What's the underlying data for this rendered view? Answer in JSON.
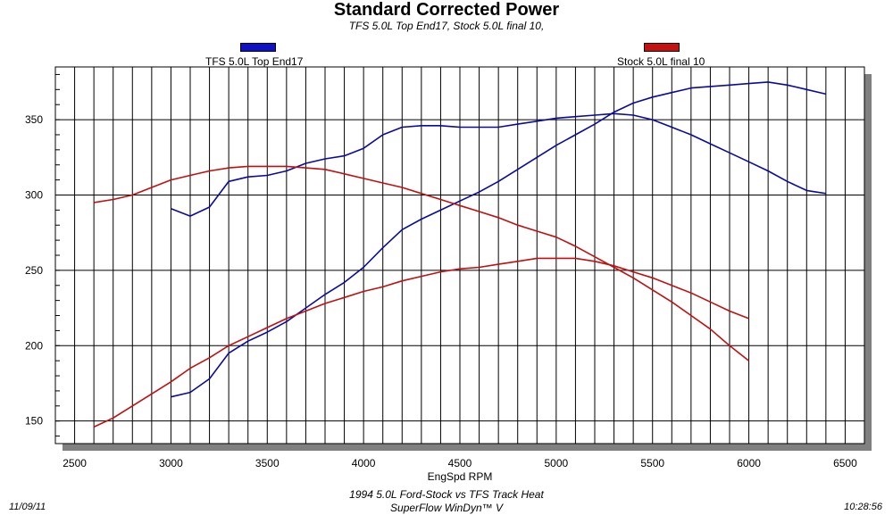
{
  "chart_data": {
    "type": "line",
    "title": "Standard Corrected Power",
    "subtitle": "TFS 5.0L Top End17, Stock 5.0L final 10,",
    "xlabel": "EngSpd RPM",
    "ylabel": "",
    "xlim": [
      2400,
      6600
    ],
    "ylim": [
      135,
      385
    ],
    "x_ticks": [
      2500,
      3000,
      3500,
      4000,
      4500,
      5000,
      5500,
      6000,
      6500
    ],
    "y_ticks": [
      150,
      200,
      250,
      300,
      350
    ],
    "grid": true,
    "legend": [
      {
        "label": "TFS 5.0L Top End17",
        "color": "#1010c8",
        "position": "top-left"
      },
      {
        "label": "Stock 5.0L final 10",
        "color": "#c81010",
        "position": "top-right"
      }
    ],
    "series": [
      {
        "name": "TFS 5.0L Top End17",
        "color": "#0a0aa0",
        "x": [
          3000,
          3100,
          3200,
          3300,
          3400,
          3500,
          3600,
          3700,
          3800,
          3900,
          4000,
          4100,
          4200,
          4300,
          4400,
          4500,
          4600,
          4700,
          4800,
          4900,
          5000,
          5100,
          5200,
          5300,
          5400,
          5500,
          5600,
          5700,
          5800,
          5900,
          6000,
          6100,
          6200,
          6300,
          6400
        ],
        "y": [
          291,
          286,
          292,
          309,
          312,
          313,
          316,
          321,
          324,
          326,
          331,
          340,
          345,
          346,
          346,
          345,
          345,
          345,
          347,
          349,
          351,
          352,
          353,
          354,
          353,
          350,
          345,
          340,
          334,
          328,
          322,
          316,
          309,
          303,
          301
        ]
      },
      {
        "name": "TFS 5.0L Top End17",
        "color": "#0a0aa0",
        "x": [
          3000,
          3100,
          3200,
          3300,
          3400,
          3500,
          3600,
          3700,
          3800,
          3900,
          4000,
          4100,
          4200,
          4300,
          4400,
          4500,
          4600,
          4700,
          4800,
          4900,
          5000,
          5100,
          5200,
          5300,
          5400,
          5500,
          5600,
          5700,
          5800,
          5900,
          6000,
          6100,
          6200,
          6300,
          6400
        ],
        "y": [
          166,
          169,
          178,
          195,
          203,
          209,
          216,
          225,
          234,
          242,
          252,
          265,
          277,
          284,
          290,
          296,
          302,
          309,
          317,
          325,
          333,
          340,
          347,
          355,
          361,
          365,
          368,
          371,
          372,
          373,
          374,
          375,
          373,
          370,
          367
        ]
      },
      {
        "name": "Stock 5.0L final 10",
        "color": "#c01010",
        "x": [
          2600,
          2700,
          2800,
          2900,
          3000,
          3100,
          3200,
          3300,
          3400,
          3500,
          3600,
          3700,
          3800,
          3900,
          4000,
          4100,
          4200,
          4300,
          4400,
          4500,
          4600,
          4700,
          4800,
          4900,
          5000,
          5100,
          5200,
          5300,
          5400,
          5500,
          5600,
          5700,
          5800,
          5900,
          6000
        ],
        "y": [
          295,
          297,
          300,
          305,
          310,
          313,
          316,
          318,
          319,
          319,
          319,
          318,
          317,
          314,
          311,
          308,
          305,
          301,
          297,
          293,
          289,
          285,
          280,
          276,
          272,
          266,
          259,
          252,
          245,
          237,
          229,
          220,
          211,
          200,
          190
        ]
      },
      {
        "name": "Stock 5.0L final 10",
        "color": "#c01010",
        "x": [
          2600,
          2700,
          2800,
          2900,
          3000,
          3100,
          3200,
          3300,
          3400,
          3500,
          3600,
          3700,
          3800,
          3900,
          4000,
          4100,
          4200,
          4300,
          4400,
          4500,
          4600,
          4700,
          4800,
          4900,
          5000,
          5100,
          5200,
          5300,
          5400,
          5500,
          5600,
          5700,
          5800,
          5900,
          6000
        ],
        "y": [
          146,
          152,
          160,
          168,
          176,
          185,
          192,
          200,
          206,
          212,
          218,
          223,
          228,
          232,
          236,
          239,
          243,
          246,
          249,
          251,
          252,
          254,
          256,
          258,
          258,
          258,
          256,
          253,
          249,
          245,
          240,
          235,
          229,
          223,
          218
        ]
      }
    ]
  },
  "footer": {
    "date": "11/09/11",
    "time": "10:28:56",
    "line1": "1994 5.0L Ford-Stock vs TFS Track Heat",
    "line2": "SuperFlow WinDyn™ V"
  }
}
